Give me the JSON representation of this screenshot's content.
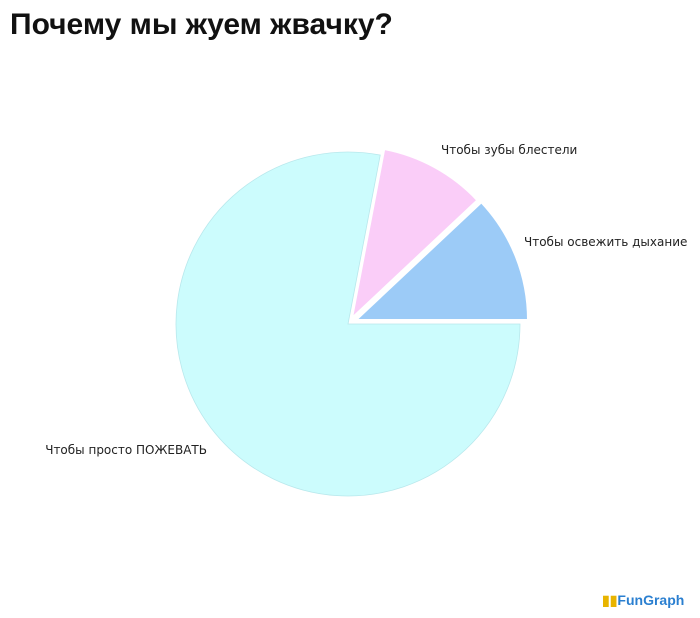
{
  "chart_data": {
    "type": "pie",
    "title": "Почему мы жуем жвачку?",
    "slices": [
      {
        "label": "Чтобы освежить дыхание",
        "value": 12,
        "color": "#9ccbf7"
      },
      {
        "label": "Чтобы зубы блестели",
        "value": 10,
        "color": "#facdf8"
      },
      {
        "label": "Чтобы просто ПОЖЕВАТЬ",
        "value": 78,
        "color": "#ccfcfd"
      }
    ],
    "legend": "none"
  },
  "logo": "FunGraph"
}
